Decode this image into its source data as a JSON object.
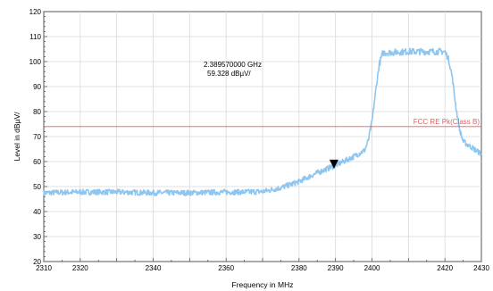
{
  "chart_data": {
    "type": "line",
    "xlabel": "Frequency in MHz",
    "ylabel": "Level in dBµV/",
    "xlim": [
      2310,
      2430
    ],
    "ylim": [
      20,
      120
    ],
    "x_ticks": [
      2310,
      2320,
      2340,
      2360,
      2380,
      2390,
      2400,
      2420,
      2430
    ],
    "y_ticks": [
      20,
      30,
      40,
      50,
      60,
      70,
      80,
      90,
      100,
      110,
      120
    ],
    "grid": true,
    "series": [
      {
        "color": "#8ec6f0",
        "x": [
          2310,
          2320,
          2330,
          2340,
          2350,
          2360,
          2365,
          2370,
          2375,
          2380,
          2385,
          2390,
          2395,
          2398,
          2399,
          2400,
          2401,
          2402,
          2403,
          2410,
          2415,
          2420,
          2421,
          2422,
          2423,
          2424,
          2425,
          2430
        ],
        "y": [
          47.5,
          47.8,
          47.8,
          47.5,
          47.5,
          47.8,
          47.8,
          48.0,
          49.5,
          52.0,
          55.5,
          58.5,
          62.0,
          64.5,
          68.5,
          76.0,
          88.0,
          99.0,
          103.5,
          104.0,
          104.0,
          104.0,
          101.0,
          94.0,
          82.0,
          73.0,
          68.0,
          63.0
        ]
      }
    ],
    "limit_line": {
      "label": "FCC RE Pk(Class B)",
      "y": 74,
      "color": "#e06060"
    },
    "marker": {
      "x": 2389.57,
      "y": 59.328,
      "frequency_text": "2.389570000 GHz",
      "level_text": "59.328 dBµV/"
    }
  }
}
